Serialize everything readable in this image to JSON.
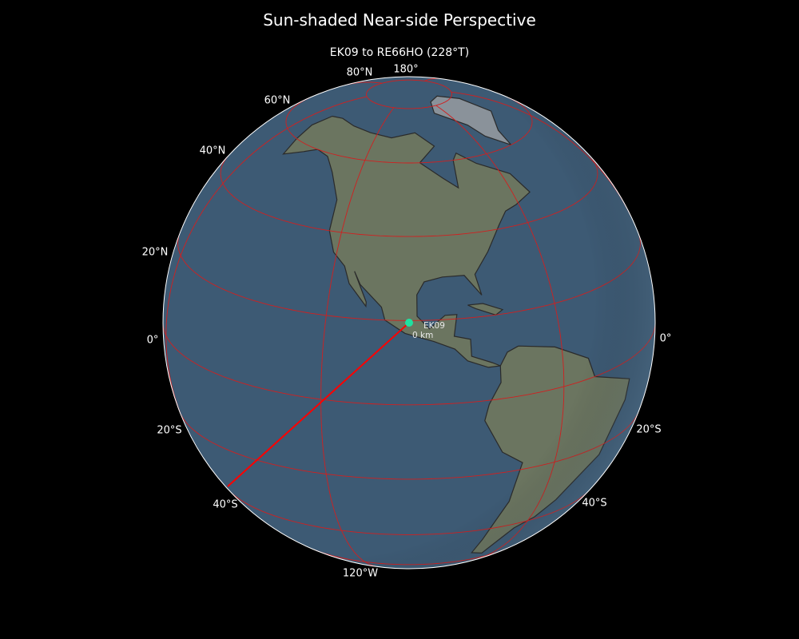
{
  "title": "Sun-shaded Near-side Perspective",
  "subtitle": "EK09 to RE66HO (228°T)",
  "map": {
    "projection": "near-side perspective",
    "center": {
      "lat": 19.5,
      "lon": -99
    },
    "graticule": {
      "lat_step": 20,
      "lon_step": 60,
      "color": "#d02020"
    },
    "ocean_color": "#3d5a74",
    "land_color": "#6b7560",
    "path_color": "#ff0000",
    "bearing_deg": 228
  },
  "station": {
    "name": "EK09",
    "distance": "0 km",
    "color": "#20e0a0"
  },
  "labels": {
    "lat80n": "80°N",
    "lat60n": "60°N",
    "lat40n": "40°N",
    "lat20n": "20°N",
    "lat0_left": "0°",
    "lat0_right": "0°",
    "lat20s_left": "20°S",
    "lat20s_right": "20°S",
    "lat40s_left": "40°S",
    "lat40s_right": "40°S",
    "lon180": "180°",
    "lon120w": "120°W"
  }
}
